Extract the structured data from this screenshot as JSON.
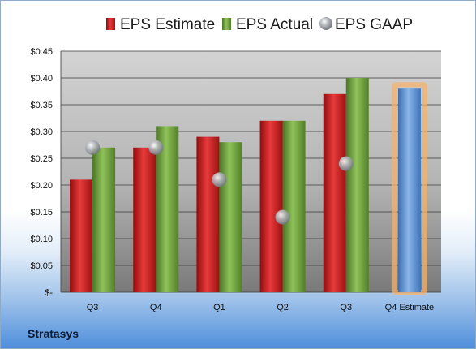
{
  "chart_data": {
    "type": "bar",
    "categories": [
      "Q3",
      "Q4",
      "Q1",
      "Q2",
      "Q3",
      "Q4 Estimate"
    ],
    "series": [
      {
        "name": "EPS Estimate",
        "type": "bar",
        "color": "#d01f1f",
        "values": [
          0.21,
          0.27,
          0.29,
          0.32,
          0.37,
          null
        ]
      },
      {
        "name": "EPS Actual",
        "type": "bar",
        "color": "#6fa13a",
        "values": [
          0.27,
          0.31,
          0.28,
          0.32,
          0.4,
          null
        ]
      },
      {
        "name": "EPS GAAP",
        "type": "scatter",
        "color": "#9ea3aa",
        "values": [
          0.27,
          0.27,
          0.21,
          0.14,
          0.24,
          null
        ]
      },
      {
        "name": "",
        "type": "bar",
        "color": "#5b8fd0",
        "highlight": "#f5b26b",
        "values": [
          null,
          null,
          null,
          null,
          null,
          0.38
        ]
      }
    ],
    "yticks": [
      "$0.45",
      "$0.40",
      "$0.35",
      "$0.30",
      "$0.25",
      "$0.20",
      "$0.15",
      "$0.10",
      "$0.05",
      "$-"
    ],
    "ylim": [
      0,
      0.45
    ],
    "grid": true,
    "legend": "top"
  },
  "company": "Stratasys"
}
